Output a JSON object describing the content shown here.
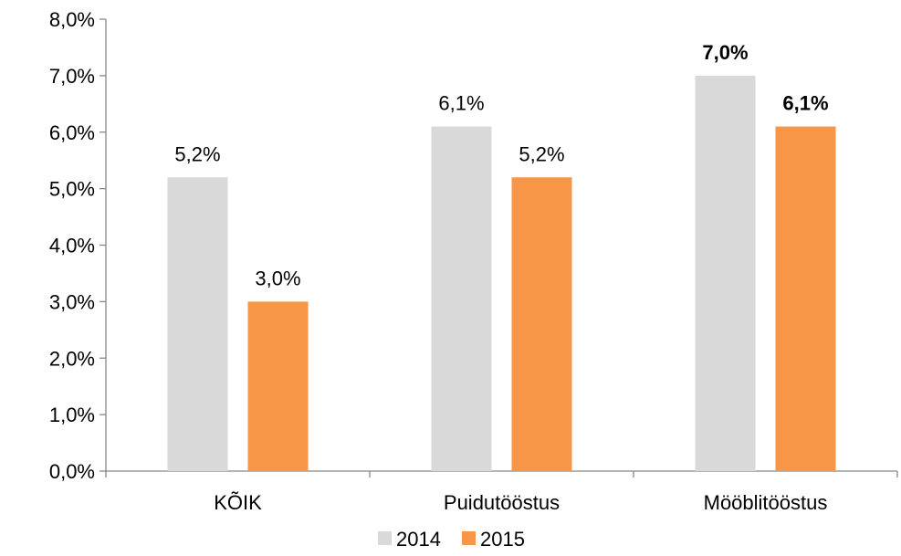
{
  "chart_data": {
    "type": "bar",
    "categories": [
      "KÕIK",
      "Puidutööstus",
      "Mööblitööstus"
    ],
    "series": [
      {
        "name": "2014",
        "color": "#D9D9D9",
        "values": [
          5.2,
          6.1,
          7.0
        ],
        "labels": [
          "5,2%",
          "6,1%",
          "7,0%"
        ],
        "bold_labels": [
          false,
          false,
          true
        ]
      },
      {
        "name": "2015",
        "color": "#F79646",
        "values": [
          3.0,
          5.2,
          6.1
        ],
        "labels": [
          "3,0%",
          "5,2%",
          "6,1%"
        ],
        "bold_labels": [
          false,
          false,
          true
        ]
      }
    ],
    "ylim": [
      0,
      8
    ],
    "yticks": [
      0,
      1,
      2,
      3,
      4,
      5,
      6,
      7,
      8
    ],
    "ytick_labels": [
      "0,0%",
      "1,0%",
      "2,0%",
      "3,0%",
      "4,0%",
      "5,0%",
      "6,0%",
      "7,0%",
      "8,0%"
    ],
    "grid": false,
    "legend_position": "bottom"
  }
}
